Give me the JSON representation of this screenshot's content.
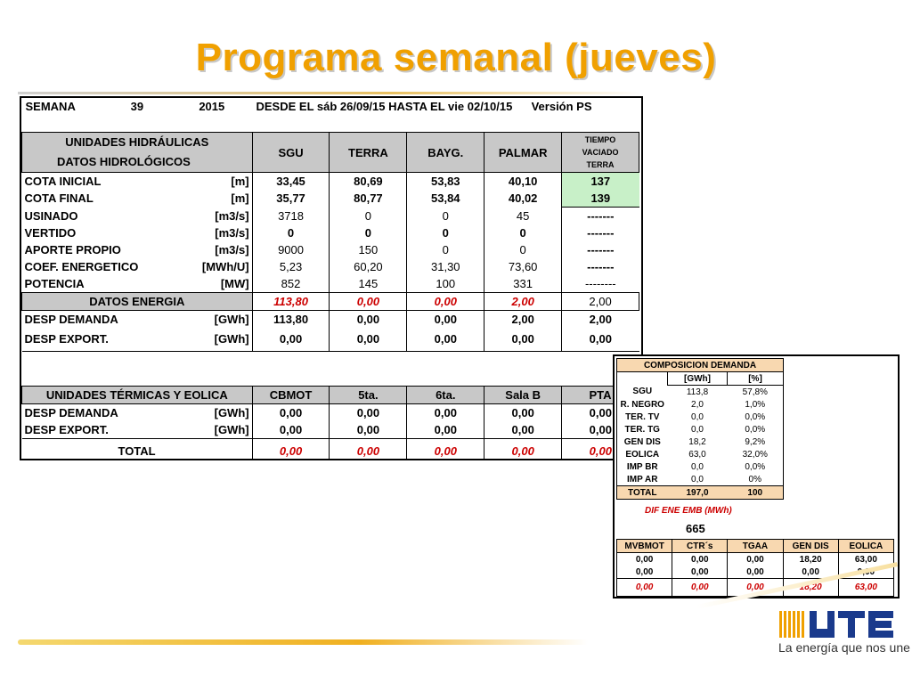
{
  "title": "Programa semanal (jueves)",
  "header": {
    "semana_label": "SEMANA",
    "week": "39",
    "year": "2015",
    "range": "DESDE EL sáb 26/09/15  HASTA EL  vie 02/10/15",
    "version": "Versión  PS"
  },
  "hydro": {
    "title_line1": "UNIDADES HIDRÁULICAS",
    "title_line2": "DATOS HIDROLÓGICOS",
    "columns": [
      "SGU",
      "TERRA",
      "BAYG.",
      "PALMAR"
    ],
    "tiempo_line1": "TIEMPO",
    "tiempo_line2": "VACIADO",
    "tiempo_line3": "TERRA",
    "rows": [
      {
        "label": "COTA INICIAL",
        "unit": "[m]",
        "values": [
          "33,45",
          "80,69",
          "53,83",
          "40,10"
        ],
        "extra": "137"
      },
      {
        "label": "COTA FINAL",
        "unit": "[m]",
        "values": [
          "35,77",
          "80,77",
          "53,84",
          "40,02"
        ],
        "extra": "139"
      },
      {
        "label": "USINADO",
        "unit": "[m3/s]",
        "values": [
          "3718",
          "0",
          "0",
          "45"
        ],
        "extra": "-------"
      },
      {
        "label": "VERTIDO",
        "unit": "[m3/s]",
        "values": [
          "0",
          "0",
          "0",
          "0"
        ],
        "extra": "-------"
      },
      {
        "label": "APORTE PROPIO",
        "unit": "[m3/s]",
        "values": [
          "9000",
          "150",
          "0",
          "0"
        ],
        "extra": "-------"
      },
      {
        "label": "COEF. ENERGETICO",
        "unit": "[MWh/U]",
        "values": [
          "5,23",
          "60,20",
          "31,30",
          "73,60"
        ],
        "extra": "-------"
      },
      {
        "label": "POTENCIA",
        "unit": "[MW]",
        "values": [
          "852",
          "145",
          "100",
          "331"
        ],
        "extra": "--------"
      }
    ],
    "energia": {
      "label": "DATOS ENERGIA",
      "values": [
        "113,80",
        "0,00",
        "0,00",
        "2,00"
      ],
      "extra": "2,00"
    },
    "demanda": {
      "label": "DESP DEMANDA",
      "unit": "[GWh]",
      "values": [
        "113,80",
        "0,00",
        "0,00",
        "2,00"
      ],
      "extra": "2,00"
    },
    "export": {
      "label": "DESP EXPORT.",
      "unit": "[GWh]",
      "values": [
        "0,00",
        "0,00",
        "0,00",
        "0,00"
      ],
      "extra": "0,00"
    }
  },
  "thermal": {
    "title": "UNIDADES TÉRMICAS Y EOLICA",
    "columns": [
      "CBMOT",
      "5ta.",
      "6ta.",
      "Sala B",
      "PTA"
    ],
    "demanda": {
      "label": "DESP DEMANDA",
      "unit": "[GWh]",
      "values": [
        "0,00",
        "0,00",
        "0,00",
        "0,00",
        "0,00"
      ]
    },
    "export": {
      "label": "DESP EXPORT.",
      "unit": "[GWh]",
      "values": [
        "0,00",
        "0,00",
        "0,00",
        "0,00",
        "0,00"
      ]
    },
    "total": {
      "label": "TOTAL",
      "values": [
        "0,00",
        "0,00",
        "0,00",
        "0,00",
        "0,00"
      ]
    }
  },
  "composition": {
    "title": "COMPOSICION DEMANDA",
    "col_gwh": "[GWh]",
    "col_pct": "[%]",
    "rows": [
      {
        "label": "SGU",
        "gwh": "113,8",
        "pct": "57,8%"
      },
      {
        "label": "R. NEGRO",
        "gwh": "2,0",
        "pct": "1,0%"
      },
      {
        "label": "TER. TV",
        "gwh": "0,0",
        "pct": "0,0%"
      },
      {
        "label": "TER. TG",
        "gwh": "0,0",
        "pct": "0,0%"
      },
      {
        "label": "GEN DIS",
        "gwh": "18,2",
        "pct": "9,2%"
      },
      {
        "label": "EOLICA",
        "gwh": "63,0",
        "pct": "32,0%"
      },
      {
        "label": "IMP BR",
        "gwh": "0,0",
        "pct": "0,0%"
      },
      {
        "label": "IMP AR",
        "gwh": "0,0",
        "pct": "0%"
      }
    ],
    "total": {
      "label": "TOTAL",
      "gwh": "197,0",
      "pct": "100"
    },
    "dif_label": "DIF ENE EMB (MWh)",
    "dif_value": "665",
    "mv_columns": [
      "MVBMOT",
      "CTR´s",
      "TGAA",
      "GEN DIS",
      "EOLICA"
    ],
    "mv_rows": [
      [
        "0,00",
        "0,00",
        "0,00",
        "18,20",
        "63,00"
      ],
      [
        "0,00",
        "0,00",
        "0,00",
        "0,00",
        "0,00"
      ]
    ],
    "mv_totals": [
      "0,00",
      "0,00",
      "0,00",
      "18,20",
      "63,00"
    ]
  },
  "brand": {
    "logo_text": "UTE",
    "slogan": "La energía que nos une",
    "accent_color": "#f0a000",
    "logo_blue": "#1a3a8c"
  }
}
